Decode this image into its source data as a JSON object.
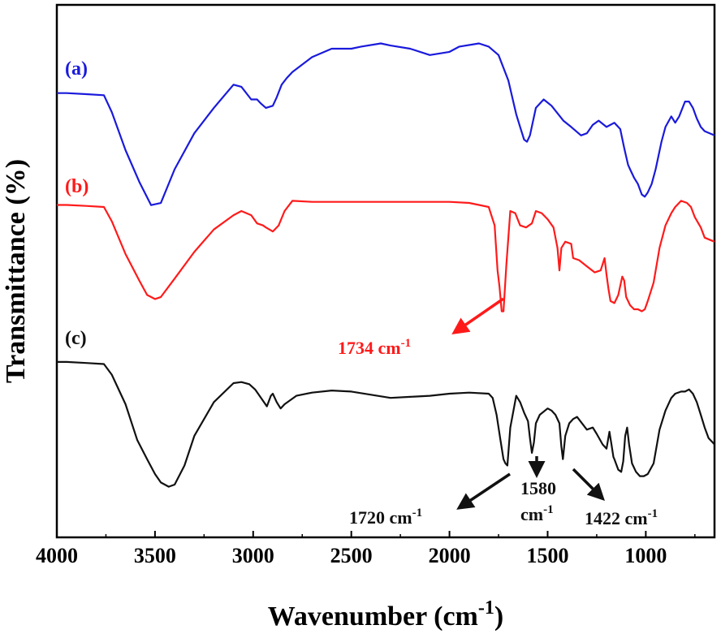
{
  "chart_data": {
    "type": "line",
    "xlabel": "Wavenumber (cm",
    "xlabel_sup": "-1",
    "xlabel_close": ")",
    "ylabel": "Transmittance (%)",
    "xlim": [
      4000,
      650
    ],
    "x_reversed": true,
    "y_ticks_shown": false,
    "grid": false,
    "x_ticks": [
      4000,
      3500,
      3000,
      2500,
      2000,
      1500,
      1000
    ],
    "x_tick_labels": [
      "4000",
      "3500",
      "3000",
      "2500",
      "2000",
      "1500",
      "1000"
    ],
    "y_unit_note": "relative (stacked spectra, arbitrary offset)",
    "series": [
      {
        "name": "(a)",
        "color": "#1a1adc",
        "x": [
          4000,
          3950,
          3850,
          3760,
          3720,
          3650,
          3580,
          3520,
          3470,
          3400,
          3300,
          3200,
          3100,
          3060,
          3010,
          2980,
          2960,
          2935,
          2900,
          2880,
          2855,
          2830,
          2800,
          2700,
          2600,
          2500,
          2450,
          2350,
          2300,
          2200,
          2100,
          2000,
          1950,
          1850,
          1800,
          1750,
          1700,
          1660,
          1640,
          1620,
          1605,
          1590,
          1560,
          1520,
          1480,
          1420,
          1380,
          1330,
          1300,
          1270,
          1240,
          1200,
          1160,
          1130,
          1110,
          1090,
          1080,
          1060,
          1040,
          1020,
          1005,
          990,
          970,
          950,
          920,
          900,
          870,
          850,
          830,
          800,
          780,
          760,
          740,
          720,
          700,
          650
        ],
        "y": [
          7.2,
          7.2,
          7.15,
          7.1,
          6.3,
          4.5,
          3.0,
          1.9,
          2.0,
          3.6,
          5.3,
          6.5,
          7.6,
          7.5,
          6.9,
          6.9,
          6.7,
          6.5,
          6.6,
          7.0,
          7.6,
          7.9,
          8.2,
          8.9,
          9.3,
          9.3,
          9.4,
          9.55,
          9.45,
          9.3,
          9.0,
          9.15,
          9.4,
          9.55,
          9.4,
          9.0,
          7.8,
          6.2,
          5.6,
          5.0,
          4.9,
          5.2,
          6.5,
          6.9,
          6.6,
          5.9,
          5.6,
          5.2,
          5.3,
          5.7,
          5.9,
          5.6,
          5.8,
          5.5,
          4.6,
          3.8,
          3.6,
          3.2,
          2.9,
          2.4,
          2.3,
          2.5,
          2.9,
          3.6,
          4.9,
          5.6,
          6.1,
          5.8,
          6.1,
          6.8,
          6.8,
          6.5,
          6.0,
          5.6,
          5.4,
          5.2
        ]
      },
      {
        "name": "(b)",
        "color": "#ff1a1a",
        "x": [
          4000,
          3950,
          3850,
          3760,
          3720,
          3650,
          3580,
          3540,
          3500,
          3470,
          3400,
          3300,
          3200,
          3100,
          3060,
          3010,
          2980,
          2950,
          2935,
          2900,
          2870,
          2840,
          2800,
          2700,
          2500,
          2300,
          2100,
          2000,
          1900,
          1800,
          1770,
          1755,
          1745,
          1734,
          1725,
          1710,
          1690,
          1665,
          1640,
          1610,
          1580,
          1560,
          1530,
          1500,
          1470,
          1450,
          1440,
          1430,
          1410,
          1380,
          1370,
          1340,
          1300,
          1260,
          1230,
          1210,
          1200,
          1190,
          1180,
          1160,
          1140,
          1120,
          1110,
          1100,
          1080,
          1060,
          1040,
          1020,
          1005,
          990,
          960,
          930,
          900,
          870,
          850,
          820,
          790,
          770,
          750,
          720,
          700,
          650
        ],
        "y": [
          6.6,
          6.6,
          6.55,
          6.5,
          5.8,
          4.2,
          2.9,
          2.2,
          2.0,
          2.1,
          3.0,
          4.3,
          5.4,
          6.1,
          6.3,
          6.1,
          5.7,
          5.6,
          5.5,
          5.3,
          5.6,
          6.3,
          6.8,
          6.75,
          6.75,
          6.75,
          6.75,
          6.75,
          6.7,
          6.5,
          5.6,
          3.4,
          2.6,
          1.4,
          1.4,
          3.7,
          6.3,
          6.2,
          5.6,
          5.5,
          5.7,
          6.3,
          6.2,
          5.9,
          5.5,
          4.5,
          3.4,
          4.5,
          4.8,
          4.7,
          4.0,
          3.9,
          3.6,
          3.3,
          3.4,
          4.0,
          3.2,
          2.5,
          1.9,
          1.8,
          2.2,
          3.1,
          2.9,
          2.1,
          1.7,
          1.5,
          1.5,
          1.4,
          1.5,
          1.9,
          2.8,
          4.5,
          5.6,
          6.2,
          6.5,
          6.8,
          6.7,
          6.5,
          6.0,
          5.5,
          5.0,
          4.8
        ]
      },
      {
        "name": "(c)",
        "color": "#111111",
        "x": [
          4000,
          3950,
          3850,
          3760,
          3720,
          3650,
          3590,
          3540,
          3500,
          3470,
          3430,
          3400,
          3350,
          3300,
          3200,
          3100,
          3060,
          3020,
          2990,
          2960,
          2930,
          2910,
          2900,
          2880,
          2860,
          2840,
          2780,
          2700,
          2600,
          2500,
          2400,
          2300,
          2200,
          2100,
          2000,
          1900,
          1800,
          1780,
          1760,
          1740,
          1725,
          1715,
          1705,
          1690,
          1660,
          1640,
          1620,
          1600,
          1590,
          1580,
          1570,
          1560,
          1540,
          1500,
          1480,
          1460,
          1440,
          1430,
          1422,
          1410,
          1390,
          1370,
          1350,
          1300,
          1270,
          1250,
          1220,
          1200,
          1185,
          1175,
          1165,
          1160,
          1140,
          1125,
          1115,
          1105,
          1095,
          1085,
          1070,
          1050,
          1030,
          1010,
          990,
          960,
          930,
          900,
          870,
          850,
          820,
          800,
          780,
          760,
          740,
          720,
          700,
          680,
          650
        ],
        "y": [
          6.5,
          6.5,
          6.45,
          6.4,
          5.9,
          4.5,
          2.8,
          1.9,
          1.2,
          0.8,
          0.6,
          0.7,
          1.6,
          3.0,
          4.6,
          5.5,
          5.55,
          5.45,
          5.2,
          4.8,
          4.4,
          4.9,
          5.0,
          4.6,
          4.3,
          4.5,
          4.9,
          5.05,
          5.15,
          5.1,
          4.95,
          4.8,
          4.85,
          4.9,
          5.0,
          5.05,
          5.0,
          4.8,
          4.0,
          2.8,
          1.9,
          1.7,
          1.6,
          3.4,
          4.9,
          4.6,
          4.1,
          3.7,
          2.9,
          2.2,
          2.7,
          3.6,
          4.0,
          4.3,
          4.2,
          4.0,
          3.6,
          2.5,
          1.9,
          3.0,
          3.6,
          3.8,
          3.9,
          3.3,
          3.4,
          3.1,
          2.6,
          2.4,
          3.2,
          2.6,
          2.0,
          1.9,
          1.4,
          1.3,
          1.8,
          3.0,
          3.4,
          2.6,
          1.7,
          1.3,
          1.1,
          1.1,
          1.2,
          1.7,
          3.3,
          4.2,
          4.8,
          5.0,
          5.1,
          5.1,
          5.2,
          5.0,
          4.6,
          4.0,
          3.4,
          2.9,
          2.6
        ]
      }
    ],
    "annotations": [
      {
        "name": "1734-annotation",
        "color": "#ff1a1a",
        "text": "1734 cm",
        "sup": "-1"
      },
      {
        "name": "1720-annotation",
        "color": "#111111",
        "text": "1720 cm",
        "sup": "-1"
      },
      {
        "name": "1580-annotation",
        "color": "#111111",
        "text": "1580",
        "text2": "cm",
        "sup": "-1"
      },
      {
        "name": "1422-annotation",
        "color": "#111111",
        "text": "1422 cm",
        "sup": "-1"
      }
    ]
  }
}
